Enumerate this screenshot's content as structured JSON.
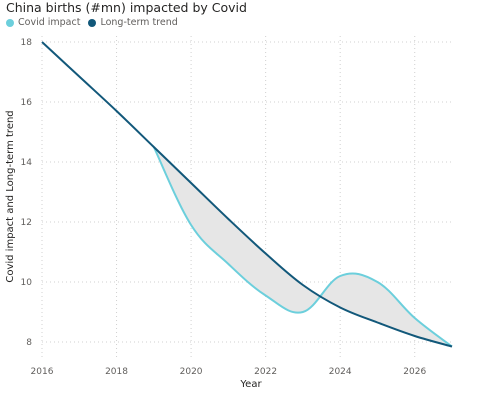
{
  "chart_data": {
    "type": "line",
    "title": "China births (#mn) impacted by Covid",
    "xlabel": "Year",
    "ylabel": "Covid impact and Long-term trend",
    "xlim": [
      2016,
      2027
    ],
    "ylim": [
      7.5,
      18.2
    ],
    "x_ticks": [
      "2016",
      "2018",
      "2020",
      "2022",
      "2024",
      "2026"
    ],
    "y_ticks": [
      "8",
      "10",
      "12",
      "14",
      "16",
      "18"
    ],
    "grid": "dotted",
    "legend_position": "top-left",
    "shaded_between_series": true,
    "series": [
      {
        "name": "Covid impact",
        "color": "#6CCFDC",
        "points": [
          [
            2019,
            14.5
          ],
          [
            2020,
            11.9
          ],
          [
            2021,
            10.6
          ],
          [
            2022,
            9.55
          ],
          [
            2023,
            9.0
          ],
          [
            2024,
            10.2
          ],
          [
            2025,
            10.0
          ],
          [
            2026,
            8.8
          ],
          [
            2027,
            7.85
          ]
        ]
      },
      {
        "name": "Long-term trend",
        "color": "#12587A",
        "points": [
          [
            2016,
            18.0
          ],
          [
            2017,
            16.85
          ],
          [
            2018,
            15.7
          ],
          [
            2019,
            14.5
          ],
          [
            2020,
            13.3
          ],
          [
            2021,
            12.1
          ],
          [
            2022,
            10.95
          ],
          [
            2023,
            9.9
          ],
          [
            2024,
            9.15
          ],
          [
            2025,
            8.65
          ],
          [
            2026,
            8.2
          ],
          [
            2027,
            7.85
          ]
        ]
      }
    ],
    "fill_color": "#e6e6e6"
  }
}
